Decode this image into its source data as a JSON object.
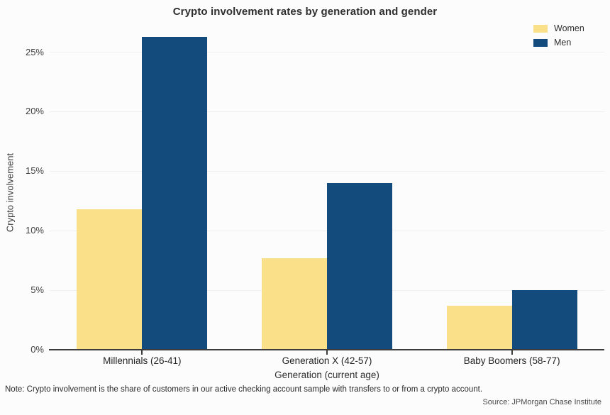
{
  "title": "Crypto involvement rates by generation and gender",
  "footnote": "Note: Crypto involvement is the share of customers in our active checking account sample with transfers to or from a crypto account.",
  "source": "Source: JPMorgan Chase Institute",
  "colors": {
    "women": "#FAE189",
    "men": "#134B7D",
    "axis": "#3d3d3d",
    "gridline": "#efefef",
    "background": "#fcfcfc"
  },
  "chart_data": {
    "type": "bar",
    "title": "Crypto involvement rates by generation and gender",
    "categories": [
      "Millennials (26-41)",
      "Generation X (42-57)",
      "Baby Boomers (58-77)"
    ],
    "series": [
      {
        "name": "Women",
        "color": "#FAE189",
        "values": [
          11.8,
          7.7,
          3.7
        ]
      },
      {
        "name": "Men",
        "color": "#134B7D",
        "values": [
          26.3,
          14.0,
          5.0
        ]
      }
    ],
    "xlabel": "Generation (current age)",
    "ylabel": "Crypto involvement",
    "ylim": [
      0,
      26.8
    ],
    "yticks": [
      {
        "value": 0,
        "label": "0%"
      },
      {
        "value": 5,
        "label": "5%"
      },
      {
        "value": 10,
        "label": "10%"
      },
      {
        "value": 15,
        "label": "15%"
      },
      {
        "value": 20,
        "label": "20%"
      },
      {
        "value": 25,
        "label": "25%"
      }
    ],
    "grid": true,
    "legend_position": "top-right"
  }
}
